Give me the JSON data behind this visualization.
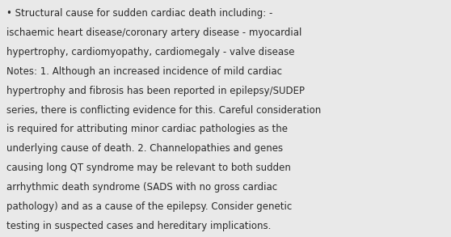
{
  "background_color": "#e9e9e9",
  "text_color": "#2a2a2a",
  "font_size": 8.5,
  "font_family": "DejaVu Sans",
  "lines": [
    "• Structural cause for sudden cardiac death including: -",
    "ischaemic heart disease/coronary artery disease - myocardial",
    "hypertrophy, cardiomyopathy, cardiomegaly - valve disease",
    "Notes: 1. Although an increased incidence of mild cardiac",
    "hypertrophy and fibrosis has been reported in epilepsy/SUDEP",
    "series, there is conflicting evidence for this. Careful consideration",
    "is required for attributing minor cardiac pathologies as the",
    "underlying cause of death. 2. Channelopathies and genes",
    "causing long QT syndrome may be relevant to both sudden",
    "arrhythmic death syndrome (SADS with no gross cardiac",
    "pathology) and as a cause of the epilepsy. Consider genetic",
    "testing in suspected cases and hereditary implications."
  ]
}
